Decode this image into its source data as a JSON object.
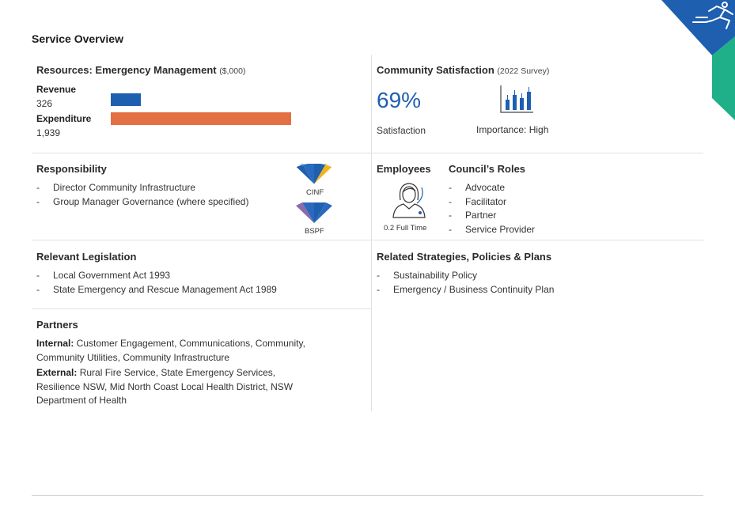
{
  "page_title": "Service Overview",
  "resources": {
    "title": "Resources: Emergency Management",
    "unit": "($,000)",
    "revenue_label": "Revenue",
    "revenue_value": "326",
    "revenue_amount": 326,
    "expenditure_label": "Expenditure",
    "expenditure_value": "1,939",
    "expenditure_amount": 1939,
    "revenue_color": "#1f5fb0",
    "expenditure_color": "#e36f45"
  },
  "satisfaction": {
    "title": "Community Satisfaction",
    "survey": "(2022 Survey)",
    "percent": "69%",
    "satisfaction_label": "Satisfaction",
    "importance_label": "Importance: High",
    "icon": "bar-chart-icon"
  },
  "responsibility": {
    "title": "Responsibility",
    "items": [
      "Director Community Infrastructure",
      "Group Manager Governance (where specified)"
    ],
    "wheel1_label": "CINF",
    "wheel2_label": "BSPF"
  },
  "employees": {
    "title": "Employees",
    "fte": "0.2 Full Time",
    "icon": "employee-icon"
  },
  "roles": {
    "title": "Council’s Roles",
    "items": [
      "Advocate",
      "Facilitator",
      "Partner",
      "Service Provider"
    ]
  },
  "legislation": {
    "title": "Relevant Legislation",
    "items": [
      "Local Government Act 1993",
      "State Emergency and Rescue Management Act 1989"
    ]
  },
  "strategies": {
    "title": "Related Strategies, Policies & Plans",
    "items": [
      "Sustainability Policy",
      "Emergency / Business Continuity Plan"
    ]
  },
  "partners": {
    "title": "Partners",
    "internal_label": "Internal:",
    "internal_text": " Customer Engagement, Communications, Community, Community Utilities, Community Infrastructure",
    "external_label": "External:",
    "external_text": " Rural Fire Service, State Emergency Services, Resilience NSW, Mid North Coast Local Health District, NSW Department of Health"
  },
  "colors": {
    "primary_blue": "#1f5fb0",
    "teal": "#1fb08a",
    "orange": "#e36f45",
    "yellow": "#f2b21b",
    "purple": "#8a6bab"
  }
}
